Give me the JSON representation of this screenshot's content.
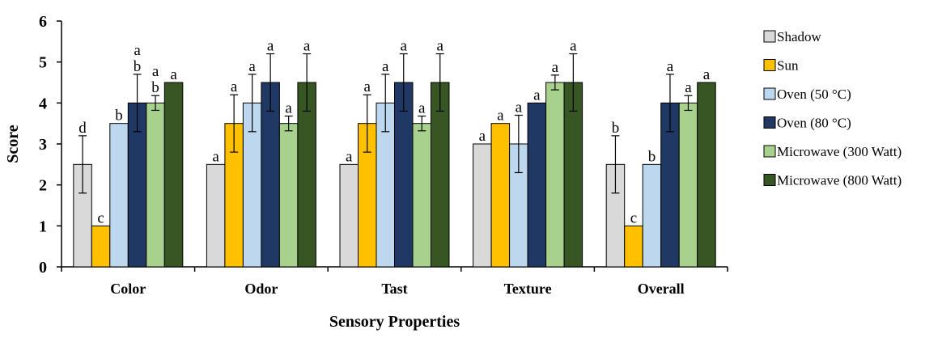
{
  "chart_data": {
    "type": "bar",
    "title": "",
    "xlabel": "Sensory Properties",
    "ylabel": "Score",
    "ylim": [
      0,
      6
    ],
    "yticks": [
      "0",
      "1",
      "2",
      "3",
      "4",
      "5",
      "6"
    ],
    "grid": false,
    "legend_position": "right",
    "categories": [
      "Color",
      "Odor",
      "Tast",
      "Texture",
      "Overall"
    ],
    "series": [
      {
        "name": "Shadow",
        "color": "#d9d9d9",
        "values": [
          2.5,
          2.5,
          2.5,
          3.0,
          2.5
        ],
        "errors": [
          0.7,
          0,
          0,
          0,
          0.7
        ],
        "labels": [
          "d",
          "a",
          "a",
          "a",
          "b"
        ]
      },
      {
        "name": "Sun",
        "color": "#ffc000",
        "values": [
          1.0,
          3.5,
          3.5,
          3.5,
          1.0
        ],
        "errors": [
          0,
          0.7,
          0.7,
          0,
          0
        ],
        "labels": [
          "c",
          "a",
          "a",
          "a",
          "c"
        ]
      },
      {
        "name": "Oven (50 °C)",
        "color": "#bdd7ee",
        "values": [
          3.5,
          4.0,
          4.0,
          3.0,
          2.5
        ],
        "errors": [
          0,
          0.7,
          0.7,
          0.7,
          0
        ],
        "labels": [
          "b",
          "a",
          "a",
          "a",
          "b"
        ]
      },
      {
        "name": "Oven (80 °C)",
        "color": "#203864",
        "values": [
          4.0,
          4.5,
          4.5,
          4.0,
          4.0
        ],
        "errors": [
          0.7,
          0.7,
          0.7,
          0,
          0.7
        ],
        "labels": [
          "a\nb",
          "a",
          "a",
          "a",
          "a"
        ]
      },
      {
        "name": "Microwave (300 Watt)",
        "color": "#a9d18e",
        "values": [
          4.0,
          3.5,
          3.5,
          4.5,
          4.0
        ],
        "errors": [
          0.18,
          0.18,
          0.18,
          0.18,
          0.18
        ],
        "labels": [
          "a\nb",
          "a",
          "a",
          "a",
          "a"
        ]
      },
      {
        "name": "Microwave (800 Watt)",
        "color": "#375623",
        "values": [
          4.5,
          4.5,
          4.5,
          4.5,
          4.5
        ],
        "errors": [
          0,
          0.7,
          0.7,
          0.7,
          0
        ],
        "labels": [
          "a",
          "a",
          "a",
          "a",
          "a"
        ]
      }
    ]
  }
}
